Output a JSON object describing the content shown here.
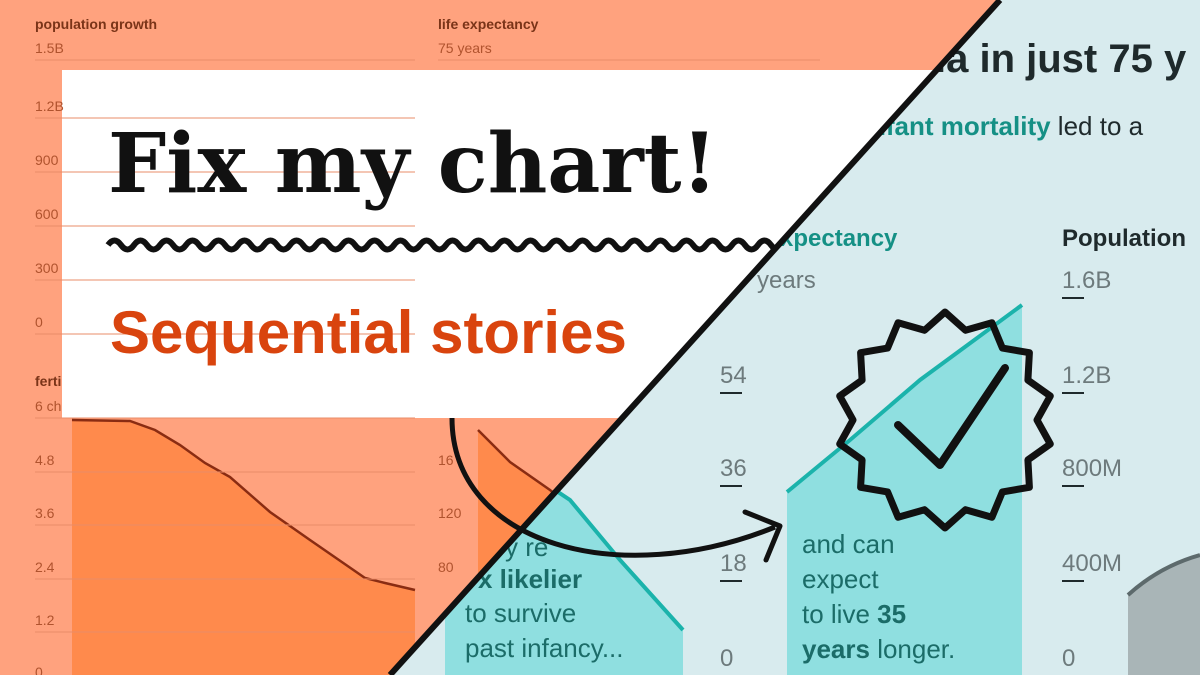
{
  "header": {
    "title": "Fix my chart!",
    "subtitle": "Sequential stories"
  },
  "background_left": {
    "panels": [
      {
        "label": "population growth",
        "ticks": [
          "1.5B",
          "1.2B",
          "900",
          "600",
          "300",
          "0"
        ]
      },
      {
        "label": "life expectancy",
        "ticks": [
          "75 years"
        ]
      },
      {
        "label": "ferti",
        "ticks": [
          "6 ch",
          "4.8",
          "3.6",
          "2.4",
          "1.2",
          "0"
        ]
      },
      {
        "ticks": [
          "16",
          "120",
          "80"
        ]
      }
    ]
  },
  "background_right": {
    "title": "ia in just 75 y",
    "subtitle": {
      "highlight": "nfant mortality",
      "rest": " led to a"
    },
    "panels": [
      {
        "label": "xpectancy",
        "ticks": [
          "years",
          "54",
          "36",
          "18",
          "0"
        ],
        "note": [
          "and can",
          "expect",
          "to live ",
          "35",
          "years",
          " longer."
        ]
      },
      {
        "label": "Population",
        "ticks": [
          "1.6B",
          "1.2B",
          "800M",
          "400M",
          "0"
        ]
      }
    ],
    "left_note": [
      "y re",
      "x likelier",
      "to survive",
      "past infancy..."
    ]
  }
}
